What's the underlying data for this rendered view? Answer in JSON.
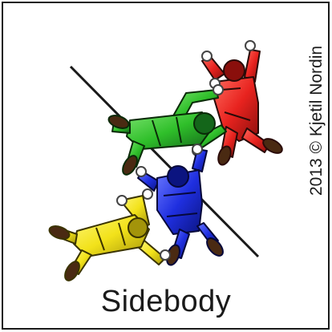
{
  "figure": {
    "title": "Sidebody",
    "credit": "2013 © Kjetil Nordin"
  },
  "jumpers": [
    {
      "name": "red",
      "color": "#e8231f"
    },
    {
      "name": "green",
      "color": "#2fbf2a"
    },
    {
      "name": "blue",
      "color": "#1f2fe0"
    },
    {
      "name": "yellow",
      "color": "#f2e21a"
    }
  ]
}
